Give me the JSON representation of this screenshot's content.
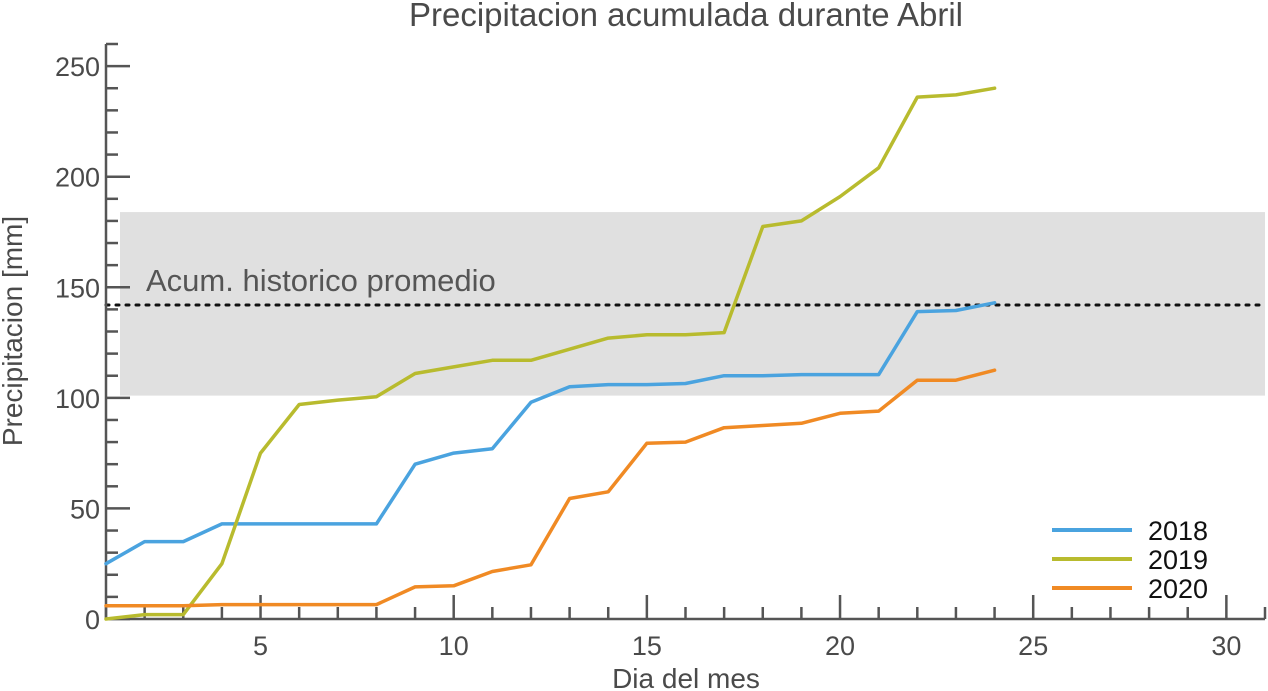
{
  "chart_data": {
    "type": "line",
    "title": "Precipitacion acumulada durante Abril",
    "xlabel": "Dia del mes",
    "ylabel": "Precipitacion [mm]",
    "xlim": [
      1,
      31
    ],
    "ylim": [
      0,
      260
    ],
    "xticks": [
      5,
      10,
      15,
      20,
      25,
      30
    ],
    "yticks": [
      0,
      50,
      100,
      150,
      200,
      250
    ],
    "x_minor_step": 1,
    "y_minor_step": 10,
    "grid": false,
    "legend_position": "bottom-right",
    "historical_band": {
      "low": 101,
      "high": 184,
      "color": "#e0e0e0"
    },
    "historical_mean": {
      "value": 142,
      "label": "Acum. historico promedio",
      "style": "dotted"
    },
    "x": [
      1,
      2,
      3,
      4,
      5,
      6,
      7,
      8,
      9,
      10,
      11,
      12,
      13,
      14,
      15,
      16,
      17,
      18,
      19,
      20,
      21,
      22,
      23,
      24
    ],
    "series": [
      {
        "name": "2018",
        "color": "#4aa3df",
        "values": [
          25,
          35,
          35,
          43,
          43,
          43,
          43,
          43,
          70,
          75,
          77,
          98,
          105,
          106,
          106,
          106.5,
          110,
          110,
          110.5,
          110.5,
          110.5,
          139,
          139.5,
          143
        ]
      },
      {
        "name": "2019",
        "color": "#b8bb2e",
        "values": [
          0,
          2,
          2,
          25,
          75,
          97,
          99,
          100.5,
          111,
          114,
          117,
          117,
          122,
          127,
          128.5,
          128.5,
          129.5,
          177.5,
          180,
          191,
          204,
          236,
          237,
          240
        ]
      },
      {
        "name": "2020",
        "color": "#f08a24",
        "values": [
          6,
          6,
          6,
          6.5,
          6.5,
          6.5,
          6.5,
          6.5,
          14.5,
          15,
          21.5,
          24.5,
          54.5,
          57.5,
          79.5,
          80,
          86.5,
          87.5,
          88.5,
          93,
          94,
          108,
          108,
          112.5
        ]
      }
    ]
  }
}
